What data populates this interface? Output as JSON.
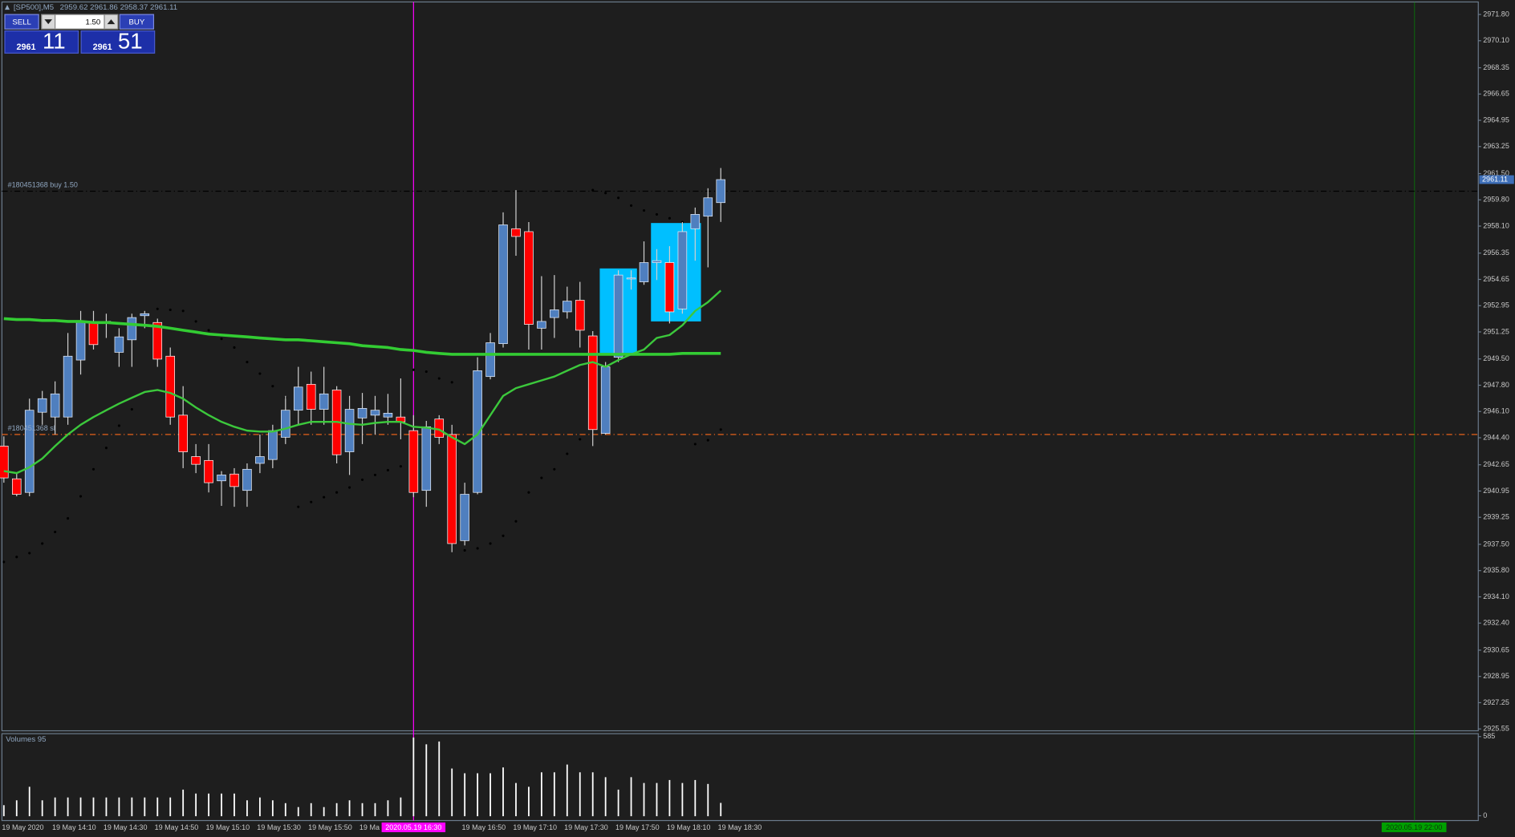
{
  "header": {
    "symbol": "[SP500],M5",
    "ohlc": "2959.62 2961.86 2958.37 2961.11"
  },
  "trade_panel": {
    "sell": "SELL",
    "buy": "BUY",
    "lots": "1.50",
    "bid": {
      "big": "2961",
      "small": "11"
    },
    "ask": {
      "big": "2961",
      "small": "51"
    }
  },
  "chart_data": {
    "type": "candlestick",
    "categories": [
      "19 May 2020",
      null,
      null,
      null,
      "19 May 14:10",
      null,
      null,
      null,
      "19 May 14:30",
      null,
      null,
      null,
      "19 May 14:50",
      null,
      null,
      null,
      "19 May 15:10",
      null,
      null,
      null,
      "19 May 15:30",
      null,
      null,
      null,
      "19 May 15:50",
      null,
      null,
      null,
      "19 Ma",
      null,
      null,
      null,
      "2020.05.19 16:30",
      null,
      null,
      null,
      "19 May 16:50",
      null,
      null,
      null,
      "19 May 17:10",
      null,
      null,
      null,
      "19 May 17:30",
      null,
      null,
      null,
      "19 May 17:50",
      null,
      null,
      null,
      "19 May 18:10",
      null,
      null,
      null,
      "19 May 18:30"
    ],
    "crosshair_index": 32,
    "crosshair_color": "#ff00ff",
    "open": [
      2943.86,
      2941.74,
      2940.86,
      2946.05,
      2945.74,
      2945.74,
      2949.43,
      2951.93,
      2951.93,
      2949.93,
      2950.74,
      2952.3,
      2951.86,
      2949.68,
      2945.86,
      2943.18,
      2942.93,
      2941.61,
      2942.05,
      2940.99,
      2942.74,
      2942.99,
      2944.43,
      2946.18,
      2947.86,
      2946.24,
      2947.49,
      2943.49,
      2945.68,
      2945.86,
      2945.74,
      2945.74,
      2944.86,
      2940.99,
      2945.61,
      2944.61,
      2937.74,
      2940.86,
      2948.36,
      2950.49,
      2957.93,
      2957.74,
      2951.49,
      2952.18,
      2952.55,
      2953.3,
      2950.99,
      2944.68,
      2949.61,
      2954.68,
      2954.49,
      2955.74,
      2955.74,
      2952.74,
      2957.93,
      2958.74,
      2959.62
    ],
    "high": [
      2944.49,
      2942.11,
      2946.93,
      2947.43,
      2948.05,
      2951.18,
      2952.61,
      2952.61,
      2952.43,
      2951.49,
      2952.43,
      2952.61,
      2952.11,
      2950.24,
      2947.74,
      2943.99,
      2943.99,
      2942.24,
      2942.43,
      2942.74,
      2944.61,
      2945.24,
      2947.11,
      2948.99,
      2948.68,
      2948.99,
      2947.74,
      2947.11,
      2947.3,
      2947.11,
      2947.24,
      2948.24,
      2945.86,
      2945.49,
      2945.86,
      2945.24,
      2941.49,
      2949.61,
      2951.18,
      2958.99,
      2960.43,
      2958.36,
      2954.86,
      2954.93,
      2954.18,
      2954.49,
      2951.3,
      2949.3,
      2955.24,
      2955.24,
      2957.11,
      2956.61,
      2956.8,
      2958.36,
      2959.3,
      2960.55,
      2961.86
    ],
    "low": [
      2941.49,
      2940.61,
      2940.61,
      2945.24,
      2944.61,
      2945.24,
      2948.49,
      2950.11,
      2950.86,
      2948.99,
      2948.99,
      2951.49,
      2948.99,
      2945.24,
      2942.43,
      2942.11,
      2940.86,
      2939.99,
      2939.93,
      2939.93,
      2942.11,
      2942.43,
      2943.99,
      2945.24,
      2945.24,
      2945.24,
      2942.74,
      2941.99,
      2943.99,
      2944.61,
      2945.24,
      2944.3,
      2940.55,
      2939.93,
      2943.99,
      2936.99,
      2937.43,
      2940.74,
      2948.18,
      2950.24,
      2956.18,
      2950.11,
      2950.11,
      2950.86,
      2952.11,
      2950.24,
      2943.86,
      2944.61,
      2949.3,
      2953.99,
      2954.3,
      2954.61,
      2951.8,
      2952.43,
      2955.86,
      2955.43,
      2958.37
    ],
    "close": [
      2941.8,
      2940.74,
      2946.18,
      2946.93,
      2947.24,
      2949.68,
      2951.93,
      2950.43,
      2951.86,
      2950.93,
      2952.18,
      2952.43,
      2949.49,
      2945.74,
      2943.49,
      2942.68,
      2941.49,
      2941.99,
      2941.24,
      2942.36,
      2943.18,
      2944.86,
      2946.18,
      2947.68,
      2946.24,
      2947.24,
      2943.3,
      2946.24,
      2946.3,
      2946.18,
      2945.99,
      2945.43,
      2940.86,
      2945.11,
      2944.43,
      2937.55,
      2940.74,
      2948.74,
      2950.55,
      2958.18,
      2957.43,
      2951.74,
      2951.93,
      2952.68,
      2953.24,
      2951.36,
      2944.93,
      2948.99,
      2954.93,
      2954.74,
      2955.74,
      2955.86,
      2952.55,
      2957.74,
      2958.86,
      2959.93,
      2961.11
    ],
    "up_color": "#4f7fbf",
    "down_color": "#ff0000",
    "indicators": [
      {
        "color": "#33cc33",
        "width": 3,
        "values": [
          2952.11,
          2952.05,
          2952.05,
          2951.99,
          2951.99,
          2951.93,
          2951.93,
          2951.86,
          2951.86,
          2951.8,
          2951.74,
          2951.68,
          2951.61,
          2951.49,
          2951.36,
          2951.24,
          2951.11,
          2951.05,
          2950.99,
          2950.93,
          2950.86,
          2950.8,
          2950.74,
          2950.74,
          2950.68,
          2950.61,
          2950.55,
          2950.49,
          2950.36,
          2950.3,
          2950.24,
          2950.11,
          2950.05,
          2949.93,
          2949.86,
          2949.8,
          2949.8,
          2949.8,
          2949.8,
          2949.8,
          2949.8,
          2949.8,
          2949.8,
          2949.8,
          2949.8,
          2949.8,
          2949.8,
          2949.8,
          2949.8,
          2949.8,
          2949.8,
          2949.8,
          2949.8,
          2949.86,
          2949.86,
          2949.86,
          2949.86
        ]
      },
      {
        "color": "#3cc83c",
        "width": 2,
        "values": [
          2942.24,
          2942.11,
          2942.49,
          2943.05,
          2943.86,
          2944.61,
          2945.24,
          2945.74,
          2946.18,
          2946.61,
          2946.99,
          2947.36,
          2947.49,
          2947.3,
          2946.93,
          2946.36,
          2945.86,
          2945.43,
          2945.11,
          2944.86,
          2944.8,
          2944.8,
          2944.99,
          2945.24,
          2945.43,
          2945.43,
          2945.43,
          2945.3,
          2945.24,
          2945.36,
          2945.43,
          2945.43,
          2945.11,
          2945.05,
          2944.93,
          2944.43,
          2943.99,
          2944.61,
          2945.86,
          2947.11,
          2947.61,
          2947.86,
          2948.11,
          2948.36,
          2948.74,
          2949.11,
          2949.3,
          2948.99,
          2949.43,
          2949.8,
          2950.11,
          2950.86,
          2951.05,
          2951.68,
          2952.61,
          2953.18,
          2953.93
        ]
      }
    ],
    "sar": {
      "color": "#000000",
      "values": [
        2936.36,
        2936.68,
        2936.93,
        2937.55,
        2938.3,
        2939.18,
        2940.61,
        2942.36,
        2943.74,
        2945.18,
        2946.24,
        null,
        2952.74,
        2952.68,
        2952.61,
        2951.93,
        2951.36,
        2950.8,
        2950.24,
        2949.3,
        2948.55,
        2947.74,
        2946.99,
        2939.93,
        2940.24,
        2940.55,
        2940.86,
        2941.18,
        2941.68,
        2941.99,
        2942.3,
        2942.55,
        2948.8,
        2948.68,
        2948.24,
        2947.99,
        2937.11,
        2937.24,
        2937.55,
        2938.05,
        2938.99,
        2940.86,
        2941.8,
        2942.36,
        2943.36,
        2944.3,
        2960.43,
        2960.24,
        2959.93,
        2959.43,
        2959.11,
        2958.86,
        2958.61,
        2958.36,
        2943.99,
        2944.24,
        2944.93
      ]
    },
    "levels": [
      {
        "label": "#180451368 buy 1.50",
        "value": 2960.36,
        "color": "#000000",
        "label_color": "#8fa6c0"
      },
      {
        "label": "#180451368 sl",
        "value": 2944.61,
        "color": "#ff6a1a",
        "label_color": "#8fa6c0"
      }
    ],
    "rectangles": [
      {
        "x": [
          47,
          49
        ],
        "y": [
          2949.8,
          2955.36
        ]
      },
      {
        "x": [
          51,
          54
        ],
        "y": [
          2951.93,
          2958.3
        ]
      }
    ],
    "rect_color": "#00bfff",
    "current_price": 2961.11,
    "ylim": [
      2925.43,
      2972.61
    ],
    "yticks": [
      {
        "value": 2971.8,
        "label": "2971.80"
      },
      {
        "value": 2970.1,
        "label": "2970.10"
      },
      2968.35,
      2966.65,
      2964.95,
      2963.25,
      {
        "value": 2961.5,
        "label": "2961.50"
      },
      {
        "value": 2959.8,
        "label": "2959.80"
      },
      {
        "value": 2958.1,
        "label": "2958.10"
      },
      2956.35,
      2954.65,
      2952.95,
      2951.25,
      {
        "value": 2949.5,
        "label": "2949.50"
      },
      {
        "value": 2947.8,
        "label": "2947.80"
      },
      {
        "value": 2946.1,
        "label": "2946.10"
      },
      {
        "value": 2944.4,
        "label": "2944.40"
      },
      2942.65,
      2940.95,
      2939.25,
      {
        "value": 2937.5,
        "label": "2937.50"
      },
      {
        "value": 2935.8,
        "label": "2935.80"
      },
      {
        "value": 2934.1,
        "label": "2934.10"
      },
      {
        "value": 2932.4,
        "label": "2932.40"
      },
      2930.65,
      2928.95,
      2927.25,
      2925.55
    ],
    "volume": {
      "title": "Volumes 95",
      "color": "#ffffff",
      "values": [
        78,
        114,
        214,
        114,
        135,
        135,
        135,
        135,
        135,
        135,
        135,
        135,
        135,
        135,
        193,
        164,
        164,
        164,
        164,
        114,
        135,
        114,
        93,
        64,
        93,
        64,
        93,
        114,
        93,
        93,
        114,
        135,
        578,
        528,
        549,
        349,
        314,
        314,
        314,
        357,
        242,
        214,
        321,
        321,
        378,
        321,
        321,
        285,
        193,
        285,
        242,
        242,
        264,
        242,
        264,
        235,
        95
      ],
      "ylim": [
        0,
        585
      ],
      "yticks": [
        0,
        585
      ]
    },
    "end_marker": {
      "label": "2020.05.19 22:00",
      "color": "#00a000"
    }
  }
}
